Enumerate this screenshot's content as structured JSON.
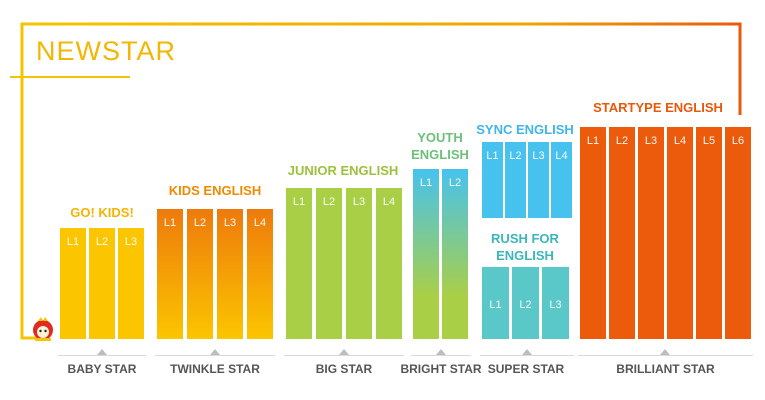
{
  "title": "NEWSTAR",
  "colors": {
    "frame_start": "#f5c400",
    "frame_end": "#e8590c",
    "yellow": "#fbc500",
    "orange": "#ec5a0c",
    "green": "#a9cf47",
    "blue": "#47c2ef",
    "teal": "#5ac7c9"
  },
  "groups": {
    "go_kids": {
      "title": "GO! KIDS!",
      "levels": [
        "L1",
        "L2",
        "L3"
      ]
    },
    "kids_english": {
      "title": "KIDS ENGLISH",
      "levels": [
        "L1",
        "L2",
        "L3",
        "L4"
      ]
    },
    "junior_english": {
      "title": "JUNIOR ENGLISH",
      "levels": [
        "L1",
        "L2",
        "L3",
        "L4"
      ]
    },
    "youth_english": {
      "title": "YOUTH ENGLISH",
      "levels": [
        "L1",
        "L2"
      ]
    },
    "sync_english": {
      "title": "SYNC ENGLISH",
      "levels": [
        "L1",
        "L2",
        "L3",
        "L4"
      ]
    },
    "rush_for_english": {
      "title": "RUSH FOR ENGLISH",
      "levels": [
        "L1",
        "L2",
        "L3"
      ]
    },
    "startype_english": {
      "title": "STARTYPE ENGLISH",
      "levels": [
        "L1",
        "L2",
        "L3",
        "L4",
        "L5",
        "L6"
      ]
    }
  },
  "categories": {
    "baby_star": "BABY STAR",
    "twinkle_star": "TWINKLE STAR",
    "big_star": "BIG STAR",
    "bright_star": "BRIGHT STAR",
    "super_star": "SUPER STAR",
    "brilliant_star": "BRILLIANT STAR"
  },
  "mascot_icon": "mascot-icon"
}
